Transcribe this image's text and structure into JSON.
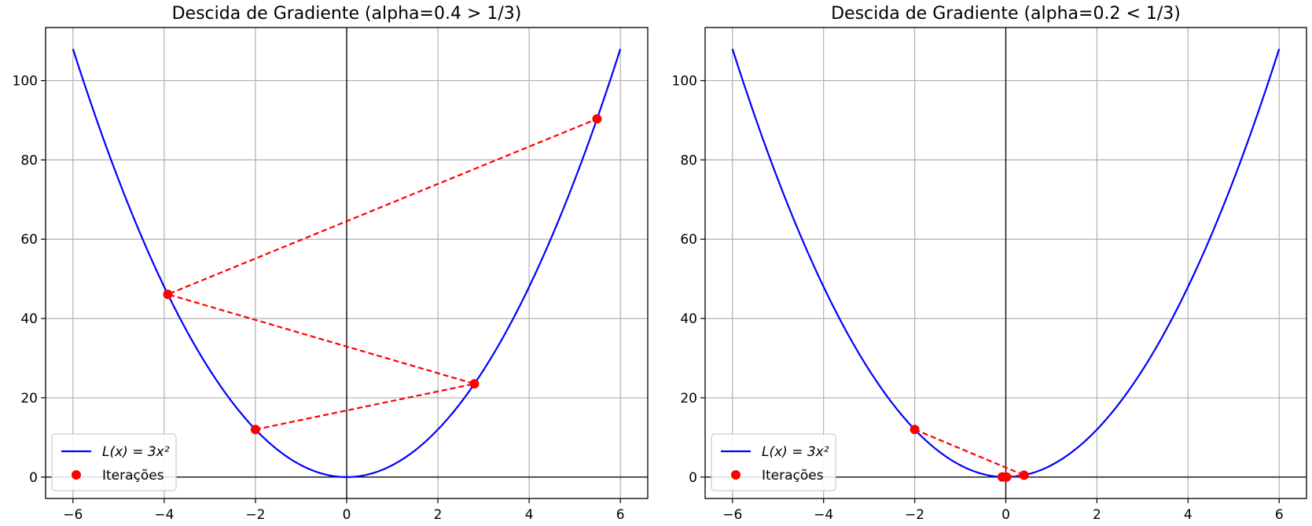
{
  "chart_data": [
    {
      "type": "line",
      "title": "Descida de Gradiente (alpha=0.4 > 1/3)",
      "xlabel": "",
      "ylabel": "",
      "xlim": [
        -6.6,
        6.6
      ],
      "ylim": [
        -5.4,
        113.4
      ],
      "x_ticks": [
        -6,
        -4,
        -2,
        0,
        2,
        4,
        6
      ],
      "x_tick_labels": [
        "−6",
        "−4",
        "−2",
        "0",
        "2",
        "4",
        "6"
      ],
      "y_ticks": [
        0,
        20,
        40,
        60,
        80,
        100
      ],
      "y_tick_labels": [
        "0",
        "20",
        "40",
        "60",
        "80",
        "100"
      ],
      "grid": true,
      "legend_position": "lower-left",
      "curve": {
        "name": "L(x) = 3x²",
        "color": "#0000ff",
        "x_range": [
          -6,
          6
        ],
        "coefficient": 3
      },
      "iterations": {
        "name": "Iterações",
        "color": "#ff0000",
        "x": [
          -2.0,
          2.8,
          -3.92,
          5.488
        ],
        "y": [
          12.0,
          23.52,
          46.0992,
          90.354
        ]
      }
    },
    {
      "type": "line",
      "title": "Descida de Gradiente (alpha=0.2 < 1/3)",
      "xlabel": "",
      "ylabel": "",
      "xlim": [
        -6.6,
        6.6
      ],
      "ylim": [
        -5.4,
        113.4
      ],
      "x_ticks": [
        -6,
        -4,
        -2,
        0,
        2,
        4,
        6
      ],
      "x_tick_labels": [
        "−6",
        "−4",
        "−2",
        "0",
        "2",
        "4",
        "6"
      ],
      "y_ticks": [
        0,
        20,
        40,
        60,
        80,
        100
      ],
      "y_tick_labels": [
        "0",
        "20",
        "40",
        "60",
        "80",
        "100"
      ],
      "grid": true,
      "legend_position": "lower-left",
      "curve": {
        "name": "L(x) = 3x²",
        "color": "#0000ff",
        "x_range": [
          -6,
          6
        ],
        "coefficient": 3
      },
      "iterations": {
        "name": "Iterações",
        "color": "#ff0000",
        "x": [
          -2.0,
          0.4,
          -0.08,
          0.016,
          -0.0032
        ],
        "y": [
          12.0,
          0.48,
          0.0192,
          0.000768,
          3e-05
        ]
      }
    }
  ]
}
